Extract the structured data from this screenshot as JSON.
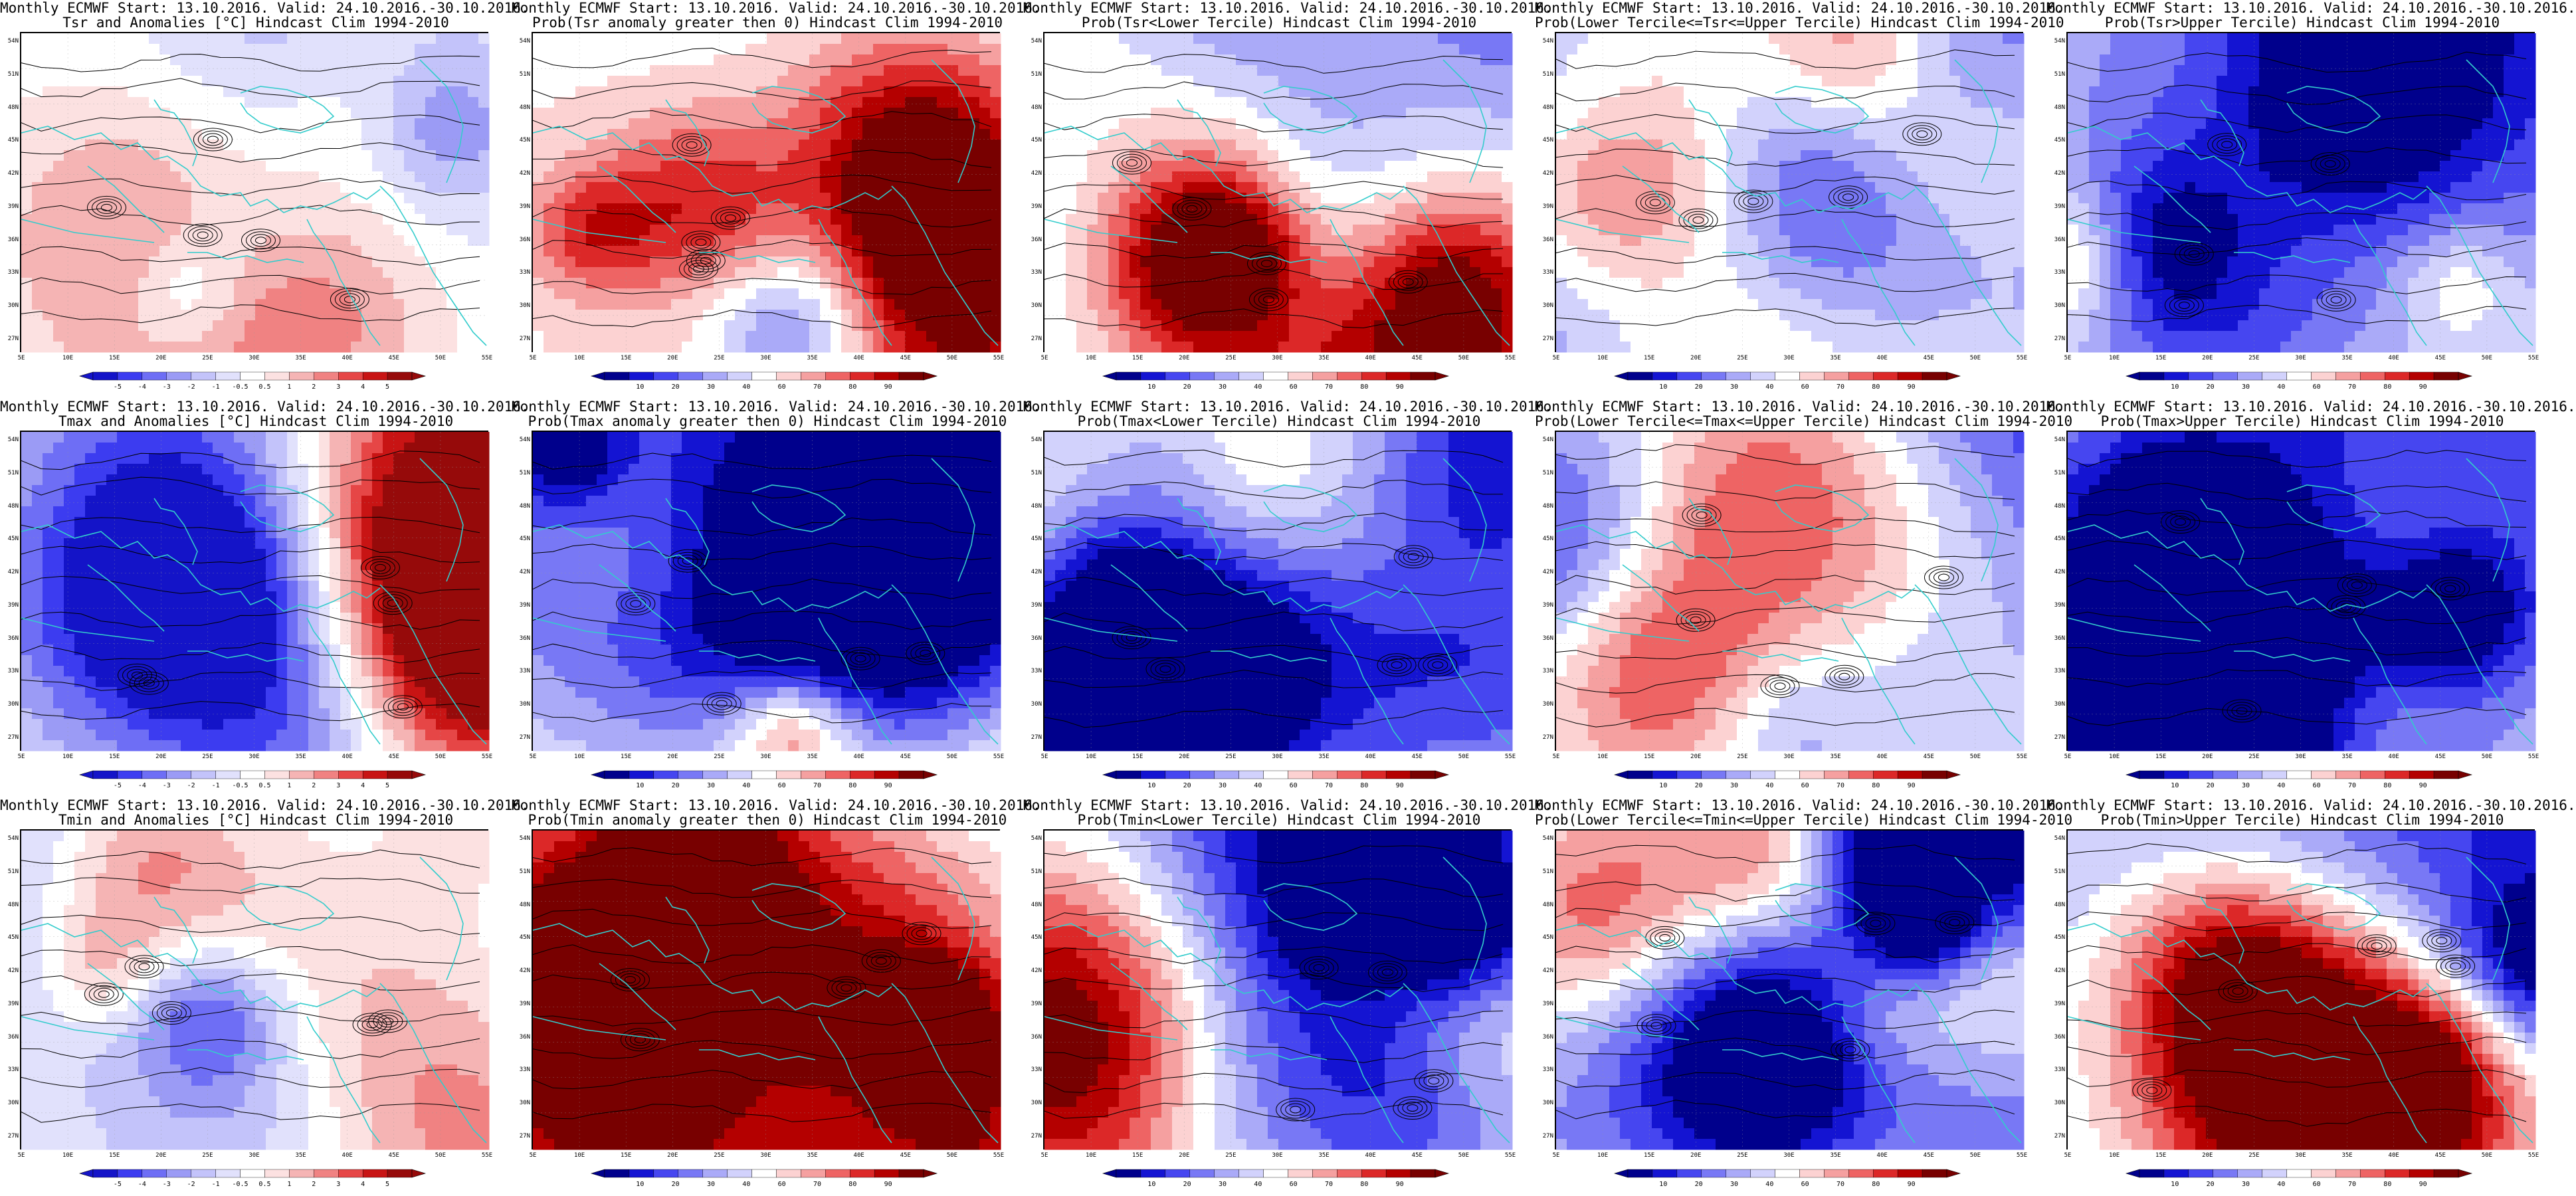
{
  "figure": {
    "rows": [
      {
        "panels": [
          {
            "title1": "Monthly ECMWF Start: 13.10.2016. Valid: 24.10.2016.-30.10.2016.",
            "title2": "Tsr and Anomalies [°C] Hindcast Clim 1994-2010",
            "kind": "anom",
            "cbar_ticks": [
              "-5",
              "-4",
              "-3",
              "-2",
              "-1",
              "-0.5",
              "0.5",
              "1",
              "2",
              "3",
              "4",
              "5"
            ],
            "seed": 11,
            "bias": -0.15
          },
          {
            "title1": "Monthly ECMWF Start: 13.10.2016. Valid: 24.10.2016.-30.10.2016.",
            "title2": "Prob(Tsr anomaly greater then 0) Hindcast Clim 1994-2010",
            "kind": "prob",
            "cbar_ticks": [
              "10",
              "20",
              "30",
              "40",
              "60",
              "70",
              "80",
              "90"
            ],
            "seed": 23,
            "bias": 0.1
          },
          {
            "title1": "Monthly ECMWF Start: 13.10.2016. Valid: 24.10.2016.-30.10.2016.",
            "title2": "Prob(Tsr<Lower Tercile) Hindcast Clim 1994-2010",
            "kind": "prob",
            "cbar_ticks": [
              "10",
              "20",
              "30",
              "40",
              "60",
              "70",
              "80",
              "90"
            ],
            "seed": 37,
            "bias": -0.35
          },
          {
            "title1": "Monthly ECMWF Start: 13.10.2016. Valid: 24.10.2016.-30.10.2016.",
            "title2": "Prob(Lower Tercile<=Tsr<=Upper Tercile) Hindcast Clim 1994-2010",
            "kind": "prob",
            "cbar_ticks": [
              "10",
              "20",
              "30",
              "40",
              "60",
              "70",
              "80",
              "90"
            ],
            "seed": 41,
            "bias": -0.55
          },
          {
            "title1": "Monthly ECMWF Start: 13.10.2016. Valid: 24.10.2016.-30.10.2016.",
            "title2": "Prob(Tsr>Upper Tercile) Hindcast Clim 1994-2010",
            "kind": "prob",
            "cbar_ticks": [
              "10",
              "20",
              "30",
              "40",
              "60",
              "70",
              "80",
              "90"
            ],
            "seed": 53,
            "bias": -0.3
          }
        ]
      },
      {
        "panels": [
          {
            "title1": "Monthly ECMWF Start: 13.10.2016. Valid: 24.10.2016.-30.10.2016.",
            "title2": "Tmax and Anomalies [°C] Hindcast Clim 1994-2010",
            "kind": "anom",
            "cbar_ticks": [
              "-5",
              "-4",
              "-3",
              "-2",
              "-1",
              "-0.5",
              "0.5",
              "1",
              "2",
              "3",
              "4",
              "5"
            ],
            "seed": 61,
            "bias": -0.1
          },
          {
            "title1": "Monthly ECMWF Start: 13.10.2016. Valid: 24.10.2016.-30.10.2016.",
            "title2": "Prob(Tmax anomaly greater then 0) Hindcast Clim 1994-2010",
            "kind": "prob",
            "cbar_ticks": [
              "10",
              "20",
              "30",
              "40",
              "60",
              "70",
              "80",
              "90"
            ],
            "seed": 71,
            "bias": 0.15
          },
          {
            "title1": "Monthly ECMWF Start: 13.10.2016. Valid: 24.10.2016.-30.10.2016.",
            "title2": "Prob(Tmax<Lower Tercile) Hindcast Clim 1994-2010",
            "kind": "prob",
            "cbar_ticks": [
              "10",
              "20",
              "30",
              "40",
              "60",
              "70",
              "80",
              "90"
            ],
            "seed": 83,
            "bias": -0.25
          },
          {
            "title1": "Monthly ECMWF Start: 13.10.2016. Valid: 24.10.2016.-30.10.2016.",
            "title2": "Prob(Lower Tercile<=Tmax<=Upper Tercile) Hindcast Clim 1994-2010",
            "kind": "prob",
            "cbar_ticks": [
              "10",
              "20",
              "30",
              "40",
              "60",
              "70",
              "80",
              "90"
            ],
            "seed": 97,
            "bias": -0.5
          },
          {
            "title1": "Monthly ECMWF Start: 13.10.2016. Valid: 24.10.2016.-30.10.2016.",
            "title2": "Prob(Tmax>Upper Tercile) Hindcast Clim 1994-2010",
            "kind": "prob",
            "cbar_ticks": [
              "10",
              "20",
              "30",
              "40",
              "60",
              "70",
              "80",
              "90"
            ],
            "seed": 101,
            "bias": -0.2
          }
        ]
      },
      {
        "panels": [
          {
            "title1": "Monthly ECMWF Start: 13.10.2016. Valid: 24.10.2016.-30.10.2016.",
            "title2": "Tmin and Anomalies [°C] Hindcast Clim 1994-2010",
            "kind": "anom",
            "cbar_ticks": [
              "-5",
              "-4",
              "-3",
              "-2",
              "-1",
              "-0.5",
              "0.5",
              "1",
              "2",
              "3",
              "4",
              "5"
            ],
            "seed": 113,
            "bias": -0.2
          },
          {
            "title1": "Monthly ECMWF Start: 13.10.2016. Valid: 24.10.2016.-30.10.2016.",
            "title2": "Prob(Tmin anomaly greater then 0) Hindcast Clim 1994-2010",
            "kind": "prob",
            "cbar_ticks": [
              "10",
              "20",
              "30",
              "40",
              "60",
              "70",
              "80",
              "90"
            ],
            "seed": 127,
            "bias": 0.05
          },
          {
            "title1": "Monthly ECMWF Start: 13.10.2016. Valid: 24.10.2016.-30.10.2016.",
            "title2": "Prob(Tmin<Lower Tercile) Hindcast Clim 1994-2010",
            "kind": "prob",
            "cbar_ticks": [
              "10",
              "20",
              "30",
              "40",
              "60",
              "70",
              "80",
              "90"
            ],
            "seed": 131,
            "bias": -0.35
          },
          {
            "title1": "Monthly ECMWF Start: 13.10.2016. Valid: 24.10.2016.-30.10.2016.",
            "title2": "Prob(Lower Tercile<=Tmin<=Upper Tercile) Hindcast Clim 1994-2010",
            "kind": "prob",
            "cbar_ticks": [
              "10",
              "20",
              "30",
              "40",
              "60",
              "70",
              "80",
              "90"
            ],
            "seed": 149,
            "bias": -0.45
          },
          {
            "title1": "Monthly ECMWF Start: 13.10.2016. Valid: 24.10.2016.-30.10.2016.",
            "title2": "Prob(Tmin>Upper Tercile) Hindcast Clim 1994-2010",
            "kind": "prob",
            "cbar_ticks": [
              "10",
              "20",
              "30",
              "40",
              "60",
              "70",
              "80",
              "90"
            ],
            "seed": 157,
            "bias": -0.4
          }
        ]
      }
    ],
    "lat_labels": [
      "54N",
      "51N",
      "48N",
      "45N",
      "42N",
      "39N",
      "36N",
      "33N",
      "30N",
      "27N"
    ],
    "lon_labels": [
      "5E",
      "10E",
      "15E",
      "20E",
      "25E",
      "30E",
      "35E",
      "40E",
      "45E",
      "50E",
      "55E"
    ],
    "colors": {
      "anom_scale": [
        "#1414c8",
        "#3c3cf0",
        "#6e6ef5",
        "#9b9bf5",
        "#c3c3fa",
        "#e1e1fc",
        "#ffffff",
        "#fce1e1",
        "#f5b4b4",
        "#f08282",
        "#e64646",
        "#c81414",
        "#960a0a"
      ],
      "prob_scale": [
        "#00008c",
        "#1414d2",
        "#4646f0",
        "#7878f5",
        "#aaaaf8",
        "#d2d2fc",
        "#ffffff",
        "#fcd2d2",
        "#f5a0a0",
        "#ee6464",
        "#dc2828",
        "#b40000",
        "#780000"
      ],
      "coastline": "#33cccc",
      "contour": "#000000"
    }
  }
}
